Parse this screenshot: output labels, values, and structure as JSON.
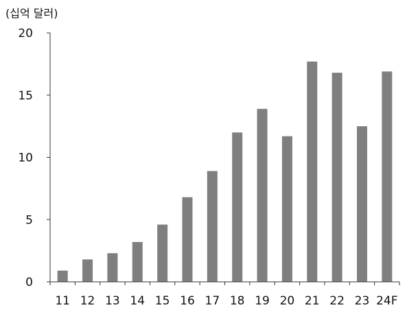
{
  "chart_data": {
    "type": "bar",
    "unit_label": "(십억 달러)",
    "categories": [
      "11",
      "12",
      "13",
      "14",
      "15",
      "16",
      "17",
      "18",
      "19",
      "20",
      "21",
      "22",
      "23",
      "24F"
    ],
    "values": [
      0.9,
      1.8,
      2.3,
      3.2,
      4.6,
      6.8,
      8.9,
      12.0,
      13.9,
      11.7,
      17.7,
      16.8,
      12.5,
      16.9
    ],
    "ylim": [
      0,
      20
    ],
    "yticks": [
      0,
      5,
      10,
      15,
      20
    ],
    "bar_color": "#7f7f7f",
    "axis_color": "#333333",
    "grid": false
  }
}
